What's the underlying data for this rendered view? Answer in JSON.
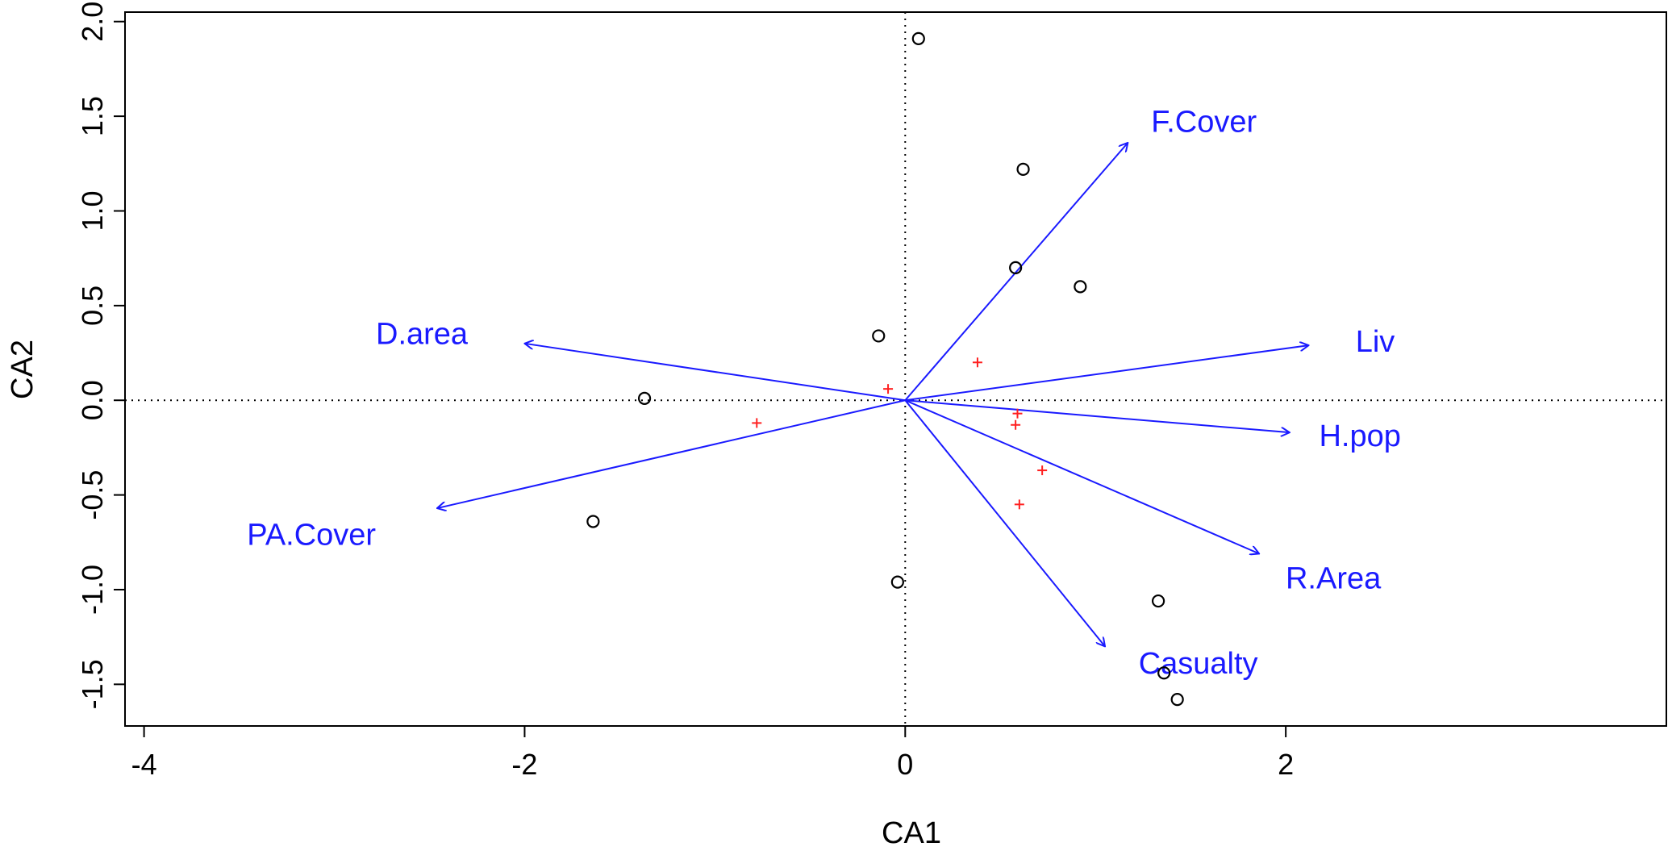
{
  "chart_data": {
    "type": "scatter",
    "title": "",
    "xlabel": "CA1",
    "ylabel": "CA2",
    "xlim": [
      -4.1,
      4.0
    ],
    "ylim": [
      -1.72,
      2.05
    ],
    "x_ticks": [
      -4,
      -2,
      0,
      2
    ],
    "y_ticks": [
      -1.5,
      -1.0,
      -0.5,
      0.0,
      0.5,
      1.0,
      1.5,
      2.0
    ],
    "x_tick_labels": [
      "-4",
      "-2",
      "0",
      "2"
    ],
    "y_tick_labels": [
      "-1.5",
      "-1.0",
      "-0.5",
      "0.0",
      "0.5",
      "1.0",
      "1.5",
      "2.0"
    ],
    "reference_lines": {
      "x": 0,
      "y": 0,
      "style": "dotted"
    },
    "colors": {
      "sites": "#000000",
      "species": "#ff2020",
      "vectors": "#1a1aff"
    },
    "sites": [
      {
        "x": 0.07,
        "y": 1.91
      },
      {
        "x": 0.62,
        "y": 1.22
      },
      {
        "x": 0.58,
        "y": 0.7
      },
      {
        "x": 0.92,
        "y": 0.6
      },
      {
        "x": -0.14,
        "y": 0.34
      },
      {
        "x": -1.37,
        "y": 0.01
      },
      {
        "x": -1.64,
        "y": -0.64
      },
      {
        "x": -0.04,
        "y": -0.96
      },
      {
        "x": 1.33,
        "y": -1.06
      },
      {
        "x": 1.36,
        "y": -1.44
      },
      {
        "x": 1.43,
        "y": -1.58
      }
    ],
    "species": [
      {
        "x": 0.38,
        "y": 0.2
      },
      {
        "x": -0.09,
        "y": 0.06
      },
      {
        "x": -0.78,
        "y": -0.12
      },
      {
        "x": 0.59,
        "y": -0.07
      },
      {
        "x": 0.58,
        "y": -0.13
      },
      {
        "x": 0.72,
        "y": -0.37
      },
      {
        "x": 0.6,
        "y": -0.55
      }
    ],
    "vectors": [
      {
        "label": "F.Cover",
        "x": 1.17,
        "y": 1.36,
        "label_x": 1.57,
        "label_y": 1.46
      },
      {
        "label": "Liv",
        "x": 2.12,
        "y": 0.29,
        "label_x": 2.47,
        "label_y": 0.3
      },
      {
        "label": "H.pop",
        "x": 2.02,
        "y": -0.17,
        "label_x": 2.39,
        "label_y": -0.2
      },
      {
        "label": "R.Area",
        "x": 1.86,
        "y": -0.81,
        "label_x": 2.25,
        "label_y": -0.95
      },
      {
        "label": "Casualty",
        "x": 1.05,
        "y": -1.3,
        "label_x": 1.54,
        "label_y": -1.4
      },
      {
        "label": "D.area",
        "x": -2.0,
        "y": 0.3,
        "label_x": -2.54,
        "label_y": 0.34
      },
      {
        "label": "PA.Cover",
        "x": -2.46,
        "y": -0.57,
        "label_x": -3.12,
        "label_y": -0.72
      }
    ]
  }
}
